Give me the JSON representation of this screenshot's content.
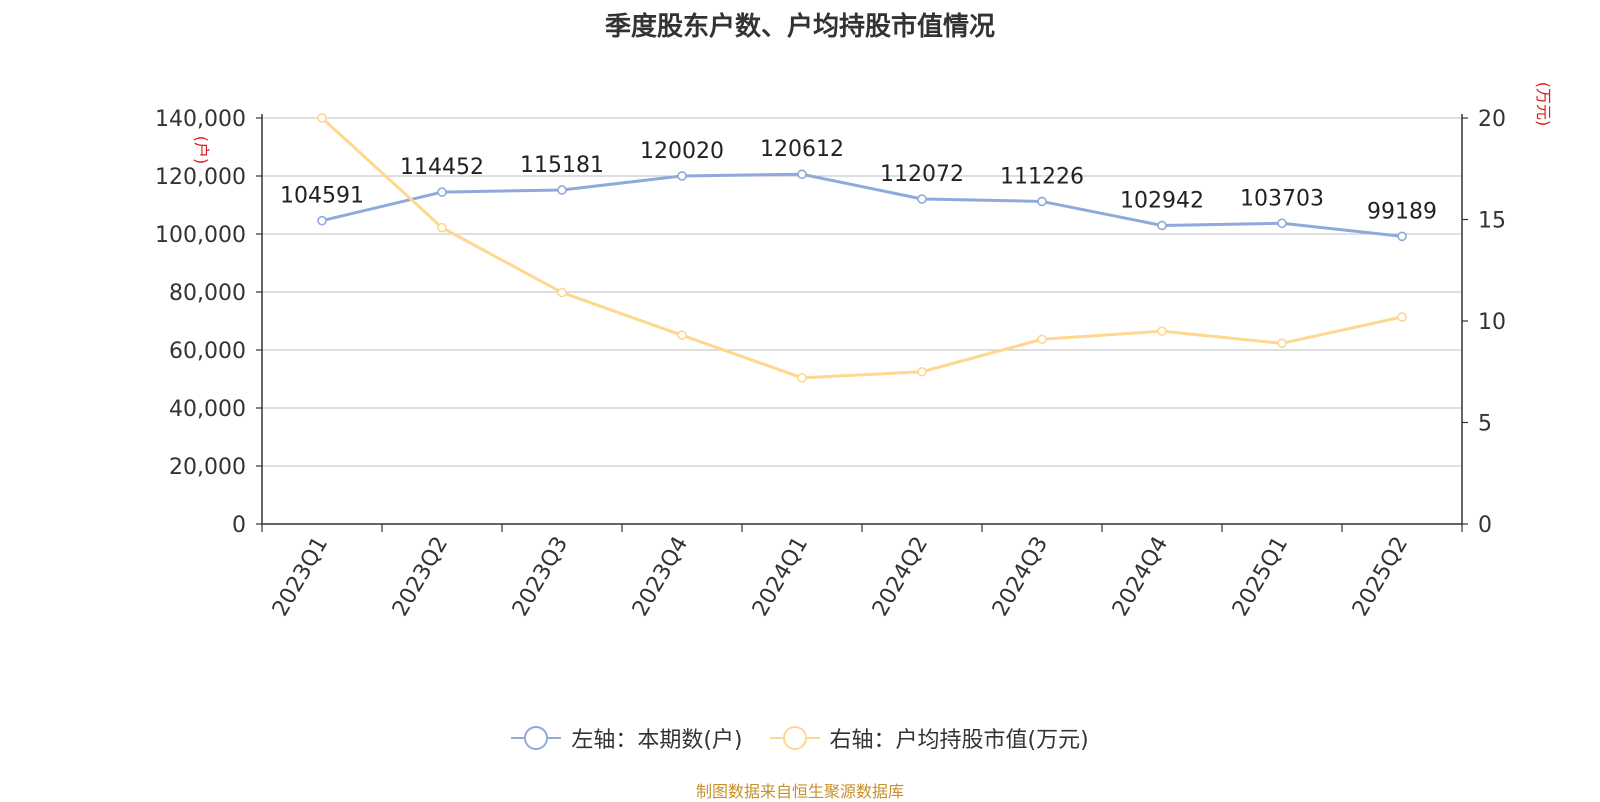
{
  "title": "季度股东户数、户均持股市值情况",
  "footer": "制图数据来自恒生聚源数据库",
  "colors": {
    "left_series": "#8eaadb",
    "right_series": "#ffd78f",
    "unit": "#e01a1a",
    "footer": "#c8902c"
  },
  "chart_data": {
    "type": "line",
    "title": "季度股东户数、户均持股市值情况",
    "categories": [
      "2023Q1",
      "2023Q2",
      "2023Q3",
      "2023Q4",
      "2024Q1",
      "2024Q2",
      "2024Q3",
      "2024Q4",
      "2025Q1",
      "2025Q2"
    ],
    "left_axis": {
      "unit": "(户)",
      "ylim": [
        0,
        140000
      ],
      "ticks": [
        0,
        20000,
        40000,
        60000,
        80000,
        100000,
        120000,
        140000
      ],
      "tick_labels": [
        "0",
        "20,000",
        "40,000",
        "60,000",
        "80,000",
        "100,000",
        "120,000",
        "140,000"
      ]
    },
    "right_axis": {
      "unit": "(万元)",
      "ylim": [
        0,
        20
      ],
      "ticks": [
        0,
        5,
        10,
        15,
        20
      ],
      "tick_labels": [
        "0",
        "5",
        "10",
        "15",
        "20"
      ]
    },
    "series": [
      {
        "name": "左轴：本期数(户)",
        "axis": "left",
        "color": "#8eaadb",
        "values": [
          104591,
          114452,
          115181,
          120020,
          120612,
          112072,
          111226,
          102942,
          103703,
          99189
        ],
        "labels": [
          "104591",
          "114452",
          "115181",
          "120020",
          "120612",
          "112072",
          "111226",
          "102942",
          "103703",
          "99189"
        ]
      },
      {
        "name": "右轴：户均持股市值(万元)",
        "axis": "right",
        "color": "#ffd78f",
        "values": [
          20.0,
          14.6,
          11.4,
          9.3,
          7.2,
          7.5,
          9.1,
          9.5,
          8.9,
          10.2
        ]
      }
    ],
    "grid": true,
    "legend_position": "bottom"
  }
}
